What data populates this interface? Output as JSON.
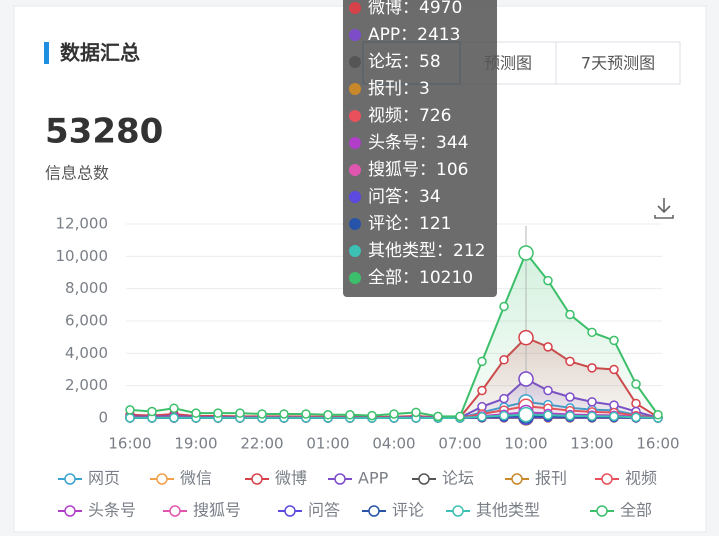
{
  "header": {
    "title": "数据汇总"
  },
  "stat": {
    "value": "53280",
    "label": "信息总数"
  },
  "tabs": [
    "预测图",
    "7天预测图"
  ],
  "chart_data": {
    "type": "line",
    "categories": [
      "16:00",
      null,
      null,
      "19:00",
      null,
      null,
      "22:00",
      null,
      null,
      "01:00",
      null,
      null,
      "04:00",
      null,
      null,
      "07:00",
      null,
      null,
      "10:00",
      null,
      null,
      "13:00",
      null,
      null,
      "16:00"
    ],
    "ylim": [
      0,
      12000
    ],
    "yticks": [
      0,
      {
        "value": 2000,
        "label": "2,000"
      },
      {
        "value": 4000,
        "label": "4,000"
      },
      {
        "value": 6000,
        "label": "6,000"
      },
      {
        "value": 8000,
        "label": "8,000"
      },
      {
        "value": 10000,
        "label": "10,000"
      },
      {
        "value": 12000,
        "label": "12,000"
      }
    ],
    "grid": true,
    "series": [
      {
        "name": "网页",
        "color": "#3ba3d0",
        "values": [
          50,
          40,
          60,
          30,
          30,
          30,
          20,
          20,
          20,
          20,
          20,
          10,
          20,
          30,
          10,
          10,
          350,
          680,
          1000,
          830,
          630,
          520,
          470,
          200,
          20
        ]
      },
      {
        "name": "微信",
        "color": "#f2a04b",
        "values": [
          10,
          10,
          15,
          5,
          5,
          5,
          5,
          5,
          5,
          5,
          5,
          0,
          5,
          5,
          0,
          0,
          80,
          150,
          223,
          185,
          140,
          115,
          105,
          45,
          5
        ]
      },
      {
        "name": "微博",
        "color": "#d6414a",
        "area": true,
        "values": [
          200,
          150,
          250,
          120,
          120,
          100,
          100,
          100,
          90,
          80,
          80,
          60,
          80,
          120,
          40,
          40,
          1700,
          3600,
          4970,
          4400,
          3500,
          3100,
          3000,
          900,
          50
        ]
      },
      {
        "name": "APP",
        "color": "#7d4cc9",
        "area": true,
        "values": [
          100,
          80,
          120,
          60,
          60,
          50,
          50,
          50,
          40,
          40,
          40,
          30,
          40,
          60,
          20,
          20,
          700,
          1200,
          2413,
          1700,
          1300,
          1000,
          800,
          400,
          20
        ]
      },
      {
        "name": "论坛",
        "color": "#555555",
        "values": [
          3,
          2,
          3,
          2,
          2,
          2,
          1,
          1,
          1,
          1,
          1,
          1,
          1,
          2,
          1,
          1,
          20,
          40,
          58,
          48,
          36,
          30,
          27,
          12,
          1
        ]
      },
      {
        "name": "报刊",
        "color": "#c9892a",
        "values": [
          0,
          0,
          0,
          0,
          0,
          0,
          0,
          0,
          0,
          0,
          0,
          0,
          0,
          0,
          0,
          0,
          1,
          2,
          3,
          2,
          2,
          1,
          1,
          0,
          0
        ]
      },
      {
        "name": "视频",
        "color": "#e8505b",
        "values": [
          40,
          30,
          45,
          20,
          20,
          20,
          15,
          15,
          15,
          15,
          15,
          10,
          15,
          20,
          10,
          10,
          250,
          490,
          726,
          600,
          460,
          380,
          340,
          145,
          15
        ]
      },
      {
        "name": "头条号",
        "color": "#b13ec9",
        "values": [
          15,
          12,
          20,
          10,
          10,
          10,
          7,
          7,
          7,
          7,
          7,
          5,
          7,
          10,
          5,
          5,
          120,
          235,
          344,
          285,
          215,
          180,
          160,
          70,
          7
        ]
      },
      {
        "name": "搜狐号",
        "color": "#e055b0",
        "values": [
          5,
          4,
          6,
          3,
          3,
          3,
          2,
          2,
          2,
          2,
          2,
          1,
          2,
          3,
          1,
          1,
          37,
          72,
          106,
          88,
          67,
          55,
          50,
          21,
          2
        ]
      },
      {
        "name": "问答",
        "color": "#5b49e0",
        "values": [
          2,
          1,
          2,
          1,
          1,
          1,
          1,
          1,
          1,
          1,
          1,
          0,
          1,
          1,
          0,
          0,
          12,
          23,
          34,
          28,
          21,
          18,
          16,
          7,
          1
        ]
      },
      {
        "name": "评论",
        "color": "#2753a8",
        "values": [
          6,
          5,
          7,
          4,
          4,
          4,
          2,
          2,
          2,
          2,
          2,
          1,
          2,
          4,
          1,
          1,
          42,
          82,
          121,
          100,
          76,
          63,
          57,
          24,
          2
        ]
      },
      {
        "name": "其他类型",
        "color": "#3cc1b4",
        "values": [
          10,
          8,
          12,
          6,
          6,
          6,
          4,
          4,
          4,
          4,
          4,
          2,
          4,
          6,
          2,
          2,
          74,
          144,
          212,
          176,
          134,
          110,
          100,
          42,
          4
        ]
      },
      {
        "name": "全部",
        "color": "#3cbf6a",
        "area": true,
        "values": [
          500,
          400,
          600,
          300,
          300,
          300,
          250,
          250,
          250,
          200,
          200,
          150,
          250,
          350,
          100,
          100,
          3500,
          6900,
          10210,
          8500,
          6400,
          5300,
          4800,
          2100,
          200
        ]
      }
    ],
    "tooltip": [
      "微博：4970",
      "APP：2413",
      "论坛：58",
      "报刊：3",
      "视频：726",
      "头条号：344",
      "搜狐号：106",
      "问答：34",
      "评论：121",
      "其他类型：212",
      "全部：10210"
    ]
  }
}
